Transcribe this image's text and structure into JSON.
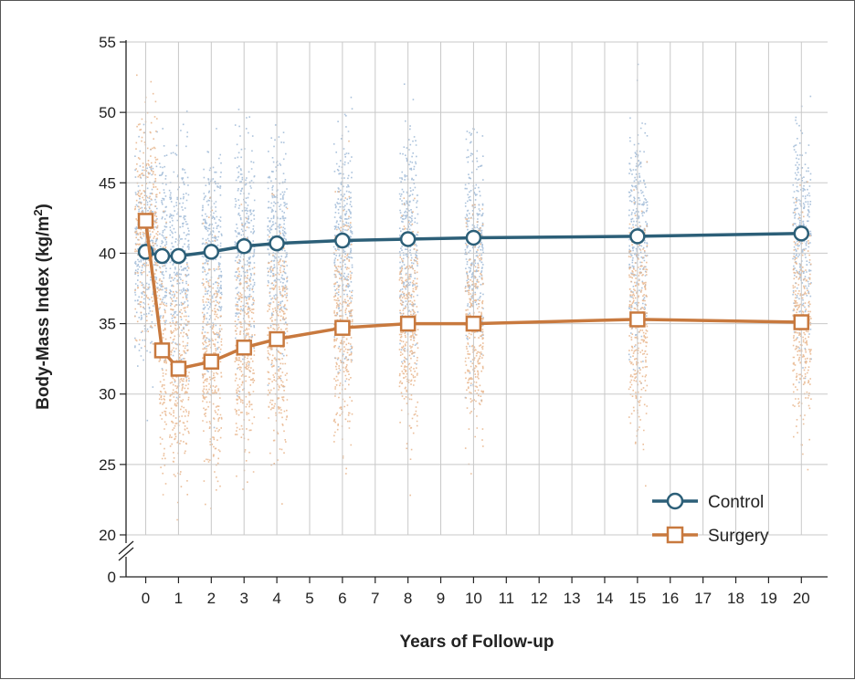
{
  "chart_data": {
    "type": "line",
    "xlabel": "Years of Follow-up",
    "ylabel": "Body-Mass Index (kg/m²)",
    "ylabel_main": "Body-Mass Index (kg/m",
    "ylabel_sup": "2",
    "ylabel_end": ")",
    "xlim": [
      -0.6,
      20.8
    ],
    "ylim": [
      20,
      55
    ],
    "axis_break": true,
    "y_zero_label": "0",
    "xticks": [
      0,
      1,
      2,
      3,
      4,
      5,
      6,
      7,
      8,
      9,
      10,
      11,
      12,
      13,
      14,
      15,
      16,
      17,
      18,
      19,
      20
    ],
    "yticks": [
      20,
      25,
      30,
      35,
      40,
      45,
      50,
      55
    ],
    "grid": true,
    "legend_position": "bottom-right",
    "series": [
      {
        "name": "Control",
        "marker": "circle",
        "color": "#2c5f78",
        "scatter_color": "#9db8d6",
        "x": [
          0,
          0.5,
          1,
          2,
          3,
          4,
          6,
          8,
          10,
          15,
          20
        ],
        "y": [
          40.1,
          39.8,
          39.8,
          40.1,
          40.5,
          40.7,
          40.9,
          41.0,
          41.1,
          41.2,
          41.4
        ]
      },
      {
        "name": "Surgery",
        "marker": "square",
        "color": "#c8793e",
        "scatter_color": "#e8b48a",
        "x": [
          0,
          0.5,
          1,
          2,
          3,
          4,
          6,
          8,
          10,
          15,
          20
        ],
        "y": [
          42.3,
          33.1,
          31.8,
          32.3,
          33.3,
          33.9,
          34.7,
          35.0,
          35.0,
          35.3,
          35.1
        ]
      }
    ]
  }
}
